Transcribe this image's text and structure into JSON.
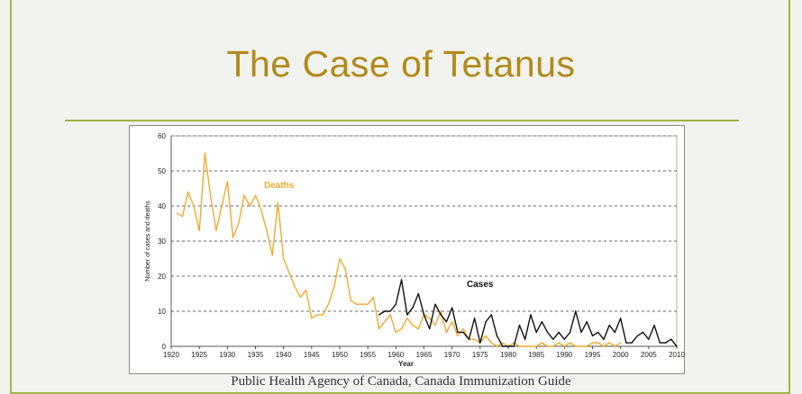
{
  "slide": {
    "title": "The Case of Tetanus",
    "caption": "Public Health Agency of Canada, Canada Immunization Guide"
  },
  "colors": {
    "accent_line": "#a0b24a",
    "title": "#b08a1a",
    "deaths": "#f0aa2c",
    "cases": "#111111"
  },
  "chart_data": {
    "type": "line",
    "xlabel": "Year",
    "ylabel": "Number of cases and deaths",
    "xlim": [
      1920,
      2010
    ],
    "ylim": [
      0,
      60
    ],
    "xticks": [
      1920,
      1925,
      1930,
      1935,
      1940,
      1945,
      1950,
      1955,
      1960,
      1965,
      1970,
      1975,
      1980,
      1985,
      1990,
      1995,
      2000,
      2005,
      2010
    ],
    "yticks": [
      0,
      10,
      20,
      30,
      40,
      50,
      60
    ],
    "grid": "horizontal dashed",
    "series": [
      {
        "name": "Deaths",
        "color": "#f0aa2c",
        "x": [
          1921,
          1922,
          1923,
          1924,
          1925,
          1926,
          1927,
          1928,
          1929,
          1930,
          1931,
          1932,
          1933,
          1934,
          1935,
          1936,
          1937,
          1938,
          1939,
          1940,
          1941,
          1942,
          1943,
          1944,
          1945,
          1946,
          1947,
          1948,
          1949,
          1950,
          1951,
          1952,
          1953,
          1954,
          1955,
          1956,
          1957,
          1958,
          1959,
          1960,
          1961,
          1962,
          1963,
          1964,
          1965,
          1966,
          1967,
          1968,
          1969,
          1970,
          1971,
          1972,
          1973,
          1974,
          1975,
          1976,
          1977,
          1978,
          1979,
          1980,
          1981,
          1982,
          1983,
          1984,
          1985,
          1986,
          1987,
          1988,
          1989,
          1990,
          1991,
          1992,
          1993,
          1994,
          1995,
          1996,
          1997,
          1998,
          1999,
          2000
        ],
        "values": [
          38,
          37,
          44,
          40,
          33,
          55,
          43,
          33,
          40,
          47,
          31,
          35,
          43,
          40,
          43,
          39,
          33,
          26,
          41,
          25,
          21,
          17,
          14,
          16,
          8,
          9,
          9,
          12,
          17,
          25,
          22,
          13,
          12,
          12,
          12,
          14,
          5,
          7,
          9,
          4,
          5,
          8,
          6,
          5,
          9,
          8,
          6,
          10,
          4,
          7,
          3,
          5,
          2,
          2,
          1,
          3,
          1,
          0,
          1,
          0,
          1,
          0,
          0,
          0,
          0,
          1,
          0,
          0,
          1,
          0,
          1,
          0,
          0,
          0,
          1,
          1,
          0,
          1,
          0,
          1
        ]
      },
      {
        "name": "Cases",
        "color": "#111111",
        "x": [
          1957,
          1958,
          1959,
          1960,
          1961,
          1962,
          1963,
          1964,
          1965,
          1966,
          1967,
          1968,
          1969,
          1970,
          1971,
          1972,
          1973,
          1974,
          1975,
          1976,
          1977,
          1978,
          1979,
          1980,
          1981,
          1982,
          1983,
          1984,
          1985,
          1986,
          1987,
          1988,
          1989,
          1990,
          1991,
          1992,
          1993,
          1994,
          1995,
          1996,
          1997,
          1998,
          1999,
          2000,
          2001,
          2002,
          2003,
          2004,
          2005,
          2006,
          2007,
          2008,
          2009,
          2010
        ],
        "values": [
          9,
          10,
          10,
          12,
          19,
          9,
          11,
          15,
          9,
          5,
          12,
          9,
          7,
          11,
          4,
          4,
          2,
          8,
          1,
          7,
          9,
          3,
          0,
          0,
          0,
          6,
          2,
          9,
          4,
          7,
          4,
          2,
          4,
          2,
          4,
          10,
          4,
          7,
          3,
          4,
          2,
          6,
          4,
          8,
          1,
          1,
          3,
          4,
          2,
          6,
          1,
          1,
          2,
          0
        ]
      }
    ],
    "annotations": [
      "Deaths",
      "Cases"
    ]
  }
}
